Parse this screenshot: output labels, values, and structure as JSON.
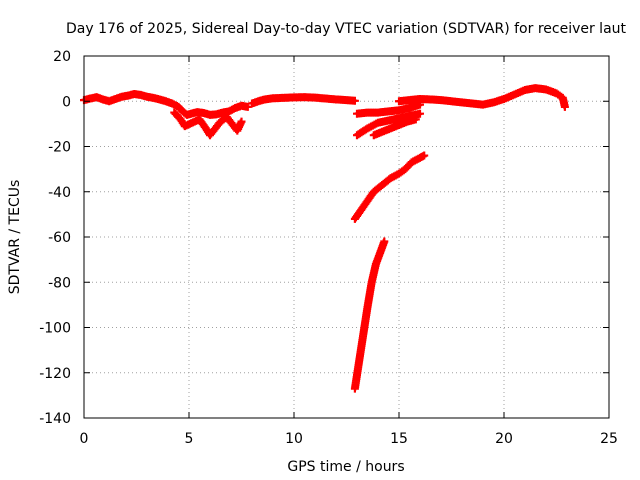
{
  "chart_data": {
    "type": "scatter",
    "title": "Day 176 of 2025, Sidereal Day-to-day VTEC variation (SDTVAR) for receiver laut",
    "xlabel": "GPS time / hours",
    "ylabel": "SDTVAR / TECUs",
    "xlim": [
      0,
      25
    ],
    "ylim": [
      -140,
      20
    ],
    "xticks": [
      0,
      5,
      10,
      15,
      20,
      25
    ],
    "yticks": [
      -140,
      -120,
      -100,
      -80,
      -60,
      -40,
      -20,
      0,
      20
    ],
    "grid": true,
    "marker": "plus",
    "color": "#ff0000",
    "series": [
      {
        "points": [
          [
            0.0,
            0.5
          ],
          [
            0.3,
            1.2
          ],
          [
            0.6,
            1.8
          ],
          [
            0.9,
            0.8
          ],
          [
            1.2,
            0.0
          ],
          [
            1.5,
            1.0
          ],
          [
            1.8,
            2.0
          ],
          [
            2.1,
            2.5
          ],
          [
            2.4,
            3.2
          ],
          [
            2.7,
            2.8
          ],
          [
            3.0,
            2.0
          ],
          [
            3.3,
            1.5
          ],
          [
            3.6,
            0.8
          ],
          [
            3.9,
            0.0
          ],
          [
            4.2,
            -1.0
          ],
          [
            4.5,
            -2.5
          ],
          [
            4.7,
            -4.5
          ],
          [
            4.9,
            -6.0
          ],
          [
            5.1,
            -5.5
          ],
          [
            5.4,
            -4.8
          ],
          [
            5.7,
            -5.2
          ],
          [
            6.0,
            -6.0
          ],
          [
            6.3,
            -5.8
          ],
          [
            6.6,
            -5.0
          ],
          [
            6.9,
            -4.5
          ],
          [
            7.2,
            -3.0
          ],
          [
            7.5,
            -2.0
          ],
          [
            7.8,
            -2.5
          ]
        ]
      },
      {
        "points": [
          [
            4.3,
            -5.0
          ],
          [
            4.6,
            -8.0
          ],
          [
            4.8,
            -11.0
          ],
          [
            5.5,
            -8.0
          ],
          [
            5.8,
            -12.0
          ],
          [
            6.0,
            -15.0
          ],
          [
            6.5,
            -9.0
          ],
          [
            6.8,
            -7.0
          ],
          [
            7.3,
            -13.0
          ],
          [
            7.5,
            -9.0
          ]
        ]
      },
      {
        "points": [
          [
            8.0,
            -1.0
          ],
          [
            8.3,
            0.0
          ],
          [
            8.6,
            0.8
          ],
          [
            9.0,
            1.3
          ],
          [
            9.5,
            1.5
          ],
          [
            10.0,
            1.7
          ],
          [
            10.5,
            1.8
          ],
          [
            11.0,
            1.6
          ],
          [
            11.5,
            1.2
          ],
          [
            12.0,
            0.8
          ],
          [
            12.5,
            0.5
          ],
          [
            12.9,
            0.2
          ]
        ]
      },
      {
        "points": [
          [
            13.0,
            -5.5
          ],
          [
            13.5,
            -5.0
          ],
          [
            14.0,
            -5.0
          ],
          [
            14.5,
            -4.5
          ],
          [
            15.0,
            -4.0
          ],
          [
            15.5,
            -3.0
          ],
          [
            16.0,
            -1.5
          ]
        ]
      },
      {
        "points": [
          [
            13.0,
            -15.0
          ],
          [
            13.5,
            -12.0
          ],
          [
            14.0,
            -9.5
          ],
          [
            14.5,
            -8.5
          ],
          [
            15.0,
            -7.5
          ],
          [
            15.5,
            -6.5
          ],
          [
            16.0,
            -5.5
          ]
        ]
      },
      {
        "points": [
          [
            13.8,
            -15.0
          ],
          [
            14.2,
            -13.5
          ],
          [
            14.6,
            -12.0
          ],
          [
            15.0,
            -10.5
          ],
          [
            15.4,
            -9.0
          ],
          [
            15.8,
            -8.0
          ]
        ]
      },
      {
        "points": [
          [
            15.0,
            0.0
          ],
          [
            15.5,
            0.5
          ],
          [
            16.0,
            1.0
          ],
          [
            16.5,
            0.8
          ],
          [
            17.0,
            0.5
          ],
          [
            17.5,
            0.0
          ],
          [
            18.0,
            -0.5
          ],
          [
            18.5,
            -1.0
          ],
          [
            19.0,
            -1.5
          ],
          [
            19.5,
            -0.5
          ],
          [
            20.0,
            1.0
          ],
          [
            20.5,
            3.0
          ],
          [
            21.0,
            5.0
          ],
          [
            21.5,
            5.8
          ],
          [
            22.0,
            5.2
          ],
          [
            22.5,
            3.5
          ],
          [
            22.8,
            1.5
          ],
          [
            22.9,
            -2.5
          ]
        ]
      },
      {
        "points": [
          [
            12.9,
            -52.0
          ],
          [
            13.2,
            -48.0
          ],
          [
            13.5,
            -44.0
          ],
          [
            13.8,
            -40.0
          ],
          [
            14.2,
            -37.0
          ],
          [
            14.6,
            -34.0
          ],
          [
            15.0,
            -32.0
          ],
          [
            15.3,
            -30.0
          ],
          [
            15.6,
            -27.0
          ],
          [
            16.0,
            -25.0
          ],
          [
            16.2,
            -24.0
          ]
        ]
      },
      {
        "points": [
          [
            12.9,
            -127.0
          ],
          [
            13.1,
            -115.0
          ],
          [
            13.3,
            -103.0
          ],
          [
            13.5,
            -91.0
          ],
          [
            13.7,
            -80.0
          ],
          [
            13.9,
            -72.0
          ],
          [
            14.1,
            -67.0
          ],
          [
            14.3,
            -62.0
          ]
        ]
      }
    ]
  }
}
